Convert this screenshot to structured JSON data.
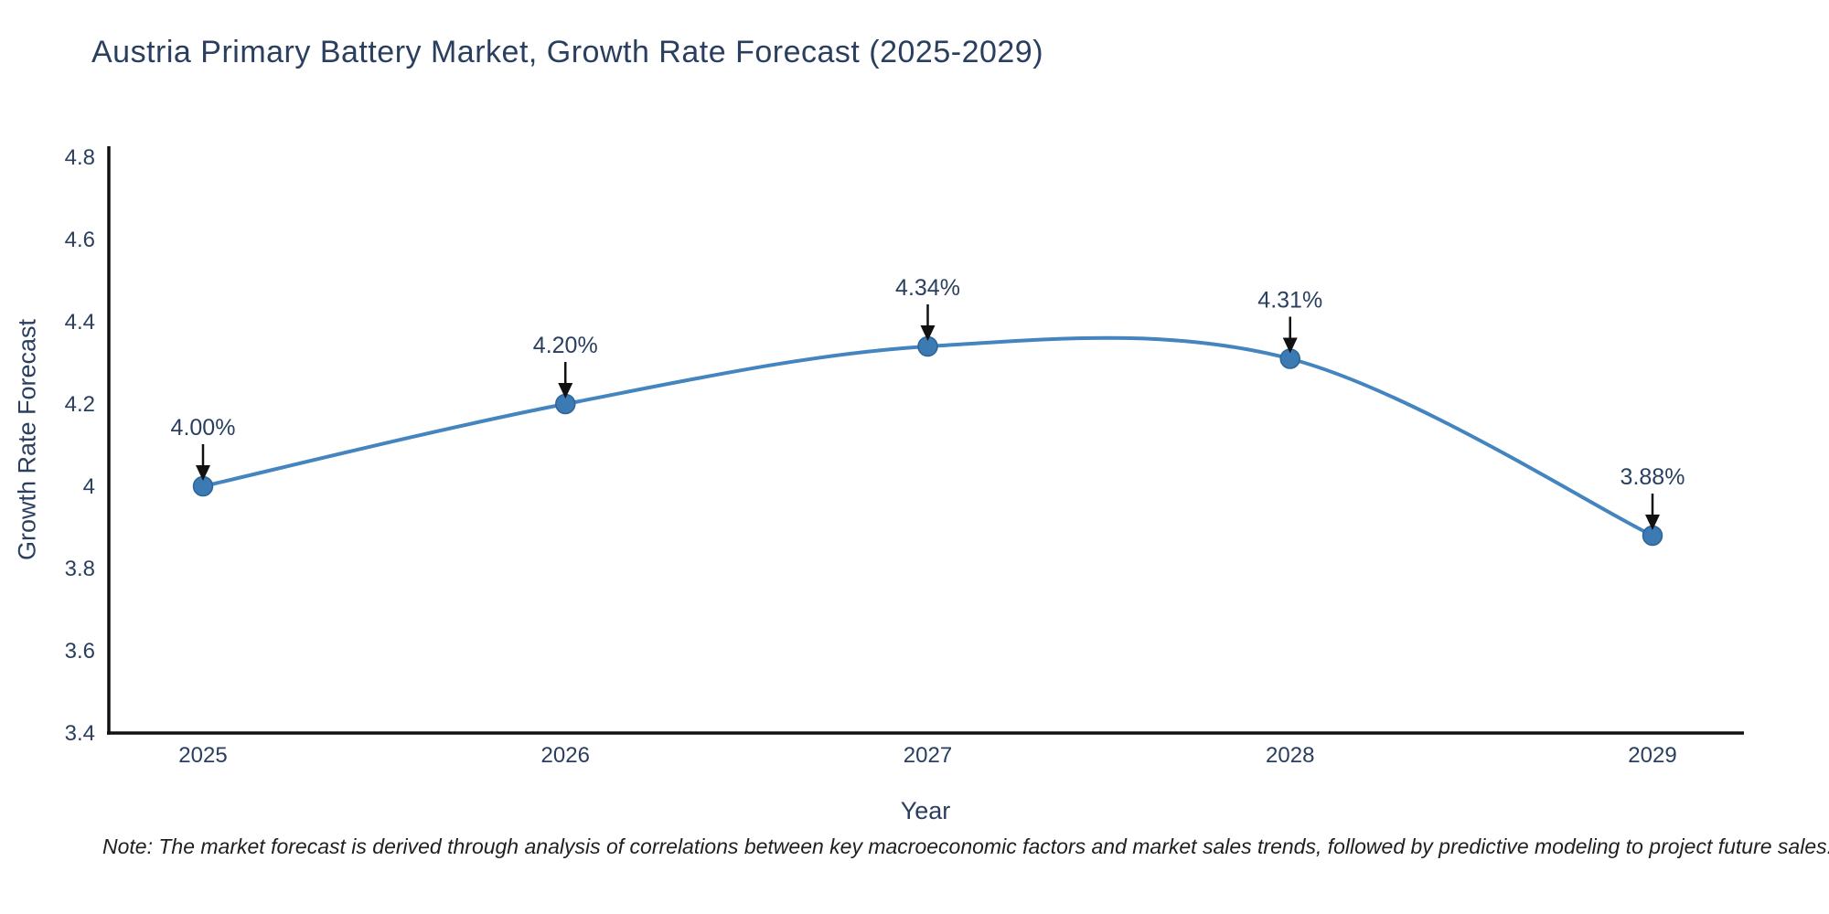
{
  "title": "Austria Primary Battery Market, Growth Rate Forecast (2025-2029)",
  "footnote": "Note: The market forecast is derived through analysis of correlations between key macroeconomic factors and market sales trends, followed by predictive modeling to project future sales.",
  "chart_data": {
    "type": "line",
    "title": "Austria Primary Battery Market, Growth Rate Forecast (2025-2029)",
    "xlabel": "Year",
    "ylabel": "Growth Rate Forecast",
    "x": [
      2025,
      2026,
      2027,
      2028,
      2029
    ],
    "xtick_labels": [
      "2025",
      "2026",
      "2027",
      "2028",
      "2029"
    ],
    "series": [
      {
        "name": "Growth Rate Forecast",
        "values": [
          4.0,
          4.2,
          4.34,
          4.31,
          3.88
        ]
      }
    ],
    "point_labels": [
      "4.00%",
      "4.20%",
      "4.34%",
      "4.31%",
      "3.88%"
    ],
    "ylim": [
      3.4,
      4.8
    ],
    "yticks": [
      3.4,
      3.6,
      3.8,
      4.0,
      4.2,
      4.4,
      4.6,
      4.8
    ],
    "ytick_labels": [
      "3.4",
      "3.6",
      "3.8",
      "4",
      "4.2",
      "4.4",
      "4.6",
      "4.8"
    ],
    "line_shape": "spline",
    "grid": false,
    "legend_position": "none",
    "colors": {
      "line": "#4484bf",
      "marker_fill": "#3c7ab4",
      "marker_edge": "#2d6496",
      "arrow": "#111111",
      "axis_line": "#111111",
      "text": "#2a3f5f"
    }
  }
}
